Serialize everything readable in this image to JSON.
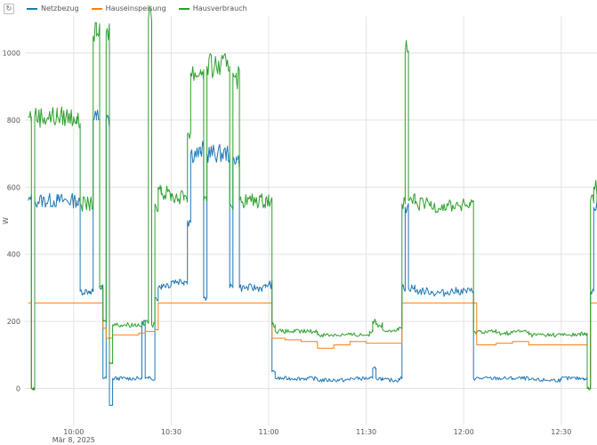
{
  "toolbar": {
    "reset_icon": "↻"
  },
  "chart_data": {
    "type": "line",
    "ylabel": "W",
    "xlabel": "",
    "ylim": [
      -110,
      1110
    ],
    "yticks": [
      0,
      200,
      400,
      600,
      800,
      1000
    ],
    "xticks": [
      {
        "time": "10:00",
        "label": "10:00",
        "sublabel": "Mär 8, 2025"
      },
      {
        "time": "10:30",
        "label": "10:30"
      },
      {
        "time": "11:00",
        "label": "11:00"
      },
      {
        "time": "11:30",
        "label": "11:30"
      },
      {
        "time": "12:00",
        "label": "12:00"
      },
      {
        "time": "12:30",
        "label": "12:30"
      }
    ],
    "xlim": [
      "09:45",
      "12:41"
    ],
    "grid": true,
    "legend_position": "top-left",
    "series": [
      {
        "name": "Netzbezug",
        "color": "#1f77b4",
        "points": [
          [
            "09:46",
            560
          ],
          [
            "09:47",
            0
          ],
          [
            "09:48",
            560
          ],
          [
            "09:55",
            560
          ],
          [
            "10:00",
            560
          ],
          [
            "10:01",
            550
          ],
          [
            "10:02",
            290
          ],
          [
            "10:05",
            290
          ],
          [
            "10:06",
            800
          ],
          [
            "10:07",
            810
          ],
          [
            "10:08",
            300
          ],
          [
            "10:09",
            30
          ],
          [
            "10:10",
            800
          ],
          [
            "10:11",
            -50
          ],
          [
            "10:12",
            30
          ],
          [
            "10:20",
            30
          ],
          [
            "10:21",
            200
          ],
          [
            "10:22",
            30
          ],
          [
            "10:23",
            30
          ],
          [
            "10:25",
            270
          ],
          [
            "10:26",
            300
          ],
          [
            "10:27",
            310
          ],
          [
            "10:30",
            320
          ],
          [
            "10:34",
            320
          ],
          [
            "10:35",
            500
          ],
          [
            "10:36",
            700
          ],
          [
            "10:39",
            710
          ],
          [
            "10:40",
            270
          ],
          [
            "10:41",
            700
          ],
          [
            "10:47",
            700
          ],
          [
            "10:48",
            300
          ],
          [
            "10:49",
            690
          ],
          [
            "10:50",
            680
          ],
          [
            "10:51",
            300
          ],
          [
            "10:58",
            300
          ],
          [
            "10:59",
            310
          ],
          [
            "11:00",
            310
          ],
          [
            "11:01",
            50
          ],
          [
            "11:02",
            30
          ],
          [
            "11:08",
            30
          ],
          [
            "11:15",
            25
          ],
          [
            "11:25",
            30
          ],
          [
            "11:31",
            30
          ],
          [
            "11:32",
            60
          ],
          [
            "11:33",
            30
          ],
          [
            "11:35",
            25
          ],
          [
            "11:40",
            30
          ],
          [
            "11:41",
            300
          ],
          [
            "11:42",
            540
          ],
          [
            "11:43",
            300
          ],
          [
            "11:45",
            290
          ],
          [
            "11:50",
            285
          ],
          [
            "11:55",
            290
          ],
          [
            "12:02",
            290
          ],
          [
            "12:03",
            30
          ],
          [
            "12:05",
            30
          ],
          [
            "12:10",
            30
          ],
          [
            "12:15",
            30
          ],
          [
            "12:20",
            25
          ],
          [
            "12:30",
            30
          ],
          [
            "12:36",
            30
          ],
          [
            "12:37",
            30
          ],
          [
            "12:38",
            0
          ],
          [
            "12:39",
            290
          ],
          [
            "12:40",
            540
          ],
          [
            "12:41",
            560
          ]
        ]
      },
      {
        "name": "Hauseinspeisung",
        "color": "#ff7f0e",
        "points": [
          [
            "09:46",
            255
          ],
          [
            "09:47",
            0
          ],
          [
            "09:48",
            255
          ],
          [
            "10:00",
            255
          ],
          [
            "10:05",
            255
          ],
          [
            "10:06",
            255
          ],
          [
            "10:08",
            255
          ],
          [
            "10:09",
            180
          ],
          [
            "10:10",
            150
          ],
          [
            "10:12",
            160
          ],
          [
            "10:20",
            165
          ],
          [
            "10:22",
            170
          ],
          [
            "10:24",
            170
          ],
          [
            "10:25",
            175
          ],
          [
            "10:26",
            255
          ],
          [
            "10:30",
            255
          ],
          [
            "10:40",
            255
          ],
          [
            "10:50",
            255
          ],
          [
            "10:59",
            255
          ],
          [
            "11:00",
            255
          ],
          [
            "11:01",
            150
          ],
          [
            "11:05",
            145
          ],
          [
            "11:10",
            140
          ],
          [
            "11:15",
            120
          ],
          [
            "11:20",
            130
          ],
          [
            "11:25",
            140
          ],
          [
            "11:30",
            135
          ],
          [
            "11:35",
            135
          ],
          [
            "11:40",
            135
          ],
          [
            "11:41",
            255
          ],
          [
            "11:50",
            255
          ],
          [
            "12:00",
            255
          ],
          [
            "12:03",
            255
          ],
          [
            "12:04",
            130
          ],
          [
            "12:10",
            135
          ],
          [
            "12:15",
            140
          ],
          [
            "12:20",
            130
          ],
          [
            "12:25",
            130
          ],
          [
            "12:30",
            130
          ],
          [
            "12:37",
            130
          ],
          [
            "12:38",
            0
          ],
          [
            "12:39",
            255
          ],
          [
            "12:41",
            255
          ]
        ]
      },
      {
        "name": "Hausverbrauch",
        "color": "#2ca02c",
        "points": [
          [
            "09:46",
            810
          ],
          [
            "09:47",
            0
          ],
          [
            "09:48",
            810
          ],
          [
            "09:55",
            810
          ],
          [
            "10:00",
            810
          ],
          [
            "10:01",
            790
          ],
          [
            "10:02",
            550
          ],
          [
            "10:05",
            550
          ],
          [
            "10:06",
            1050
          ],
          [
            "10:07",
            1060
          ],
          [
            "10:08",
            300
          ],
          [
            "10:09",
            200
          ],
          [
            "10:10",
            1060
          ],
          [
            "10:11",
            80
          ],
          [
            "10:12",
            190
          ],
          [
            "10:20",
            190
          ],
          [
            "10:22",
            200
          ],
          [
            "10:23",
            1100
          ],
          [
            "10:24",
            190
          ],
          [
            "10:25",
            550
          ],
          [
            "10:26",
            600
          ],
          [
            "10:27",
            580
          ],
          [
            "10:30",
            570
          ],
          [
            "10:34",
            575
          ],
          [
            "10:35",
            760
          ],
          [
            "10:36",
            940
          ],
          [
            "10:39",
            950
          ],
          [
            "10:40",
            560
          ],
          [
            "10:41",
            960
          ],
          [
            "10:47",
            960
          ],
          [
            "10:48",
            550
          ],
          [
            "10:49",
            940
          ],
          [
            "10:50",
            930
          ],
          [
            "10:51",
            560
          ],
          [
            "10:58",
            560
          ],
          [
            "10:59",
            565
          ],
          [
            "11:00",
            560
          ],
          [
            "11:01",
            190
          ],
          [
            "11:02",
            170
          ],
          [
            "11:08",
            170
          ],
          [
            "11:15",
            160
          ],
          [
            "11:25",
            160
          ],
          [
            "11:31",
            170
          ],
          [
            "11:32",
            200
          ],
          [
            "11:33",
            190
          ],
          [
            "11:35",
            175
          ],
          [
            "11:40",
            180
          ],
          [
            "11:41",
            550
          ],
          [
            "11:42",
            1000
          ],
          [
            "11:43",
            560
          ],
          [
            "11:45",
            550
          ],
          [
            "11:50",
            545
          ],
          [
            "11:55",
            545
          ],
          [
            "12:02",
            545
          ],
          [
            "12:03",
            170
          ],
          [
            "12:05",
            170
          ],
          [
            "12:10",
            165
          ],
          [
            "12:15",
            170
          ],
          [
            "12:20",
            160
          ],
          [
            "12:30",
            160
          ],
          [
            "12:36",
            165
          ],
          [
            "12:37",
            160
          ],
          [
            "12:38",
            0
          ],
          [
            "12:39",
            560
          ],
          [
            "12:40",
            600
          ],
          [
            "12:41",
            560
          ]
        ]
      }
    ]
  }
}
